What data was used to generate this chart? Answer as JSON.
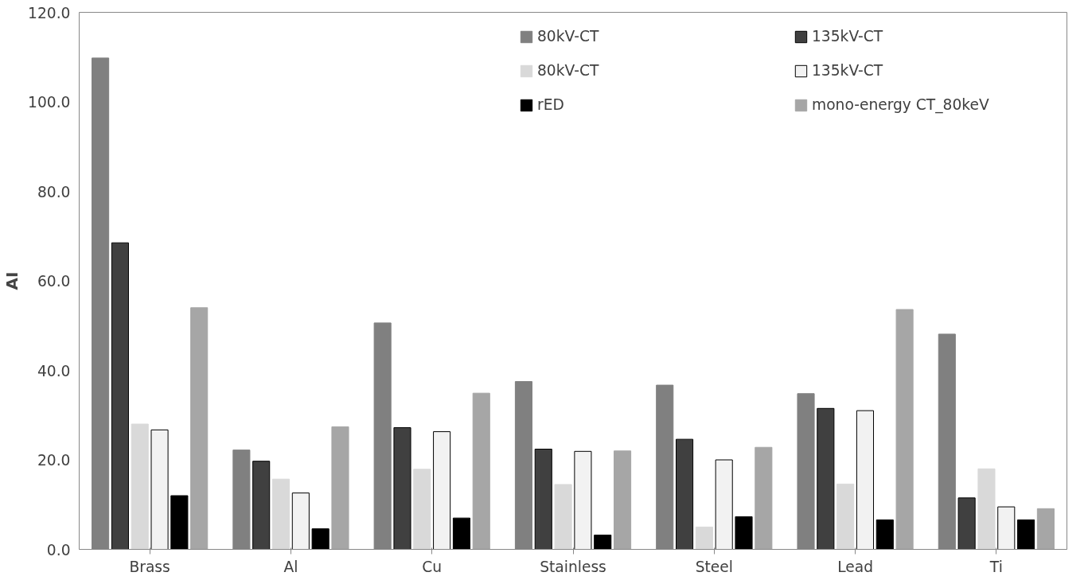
{
  "chart_data": {
    "type": "bar",
    "ylabel": "AI",
    "categories": [
      "Brass",
      "Al",
      "Cu",
      "Stainless",
      "Steel",
      "Lead",
      "Ti"
    ],
    "series": [
      {
        "name": "80kV-CT",
        "color": "#808080",
        "values": [
          109.8,
          22.2,
          50.6,
          37.5,
          36.7,
          34.8,
          48.1
        ]
      },
      {
        "name": "135kV-CT",
        "color": "#404040",
        "values": [
          68.5,
          19.7,
          27.2,
          22.4,
          24.6,
          31.5,
          11.5
        ]
      },
      {
        "name": "80kV-CT",
        "color": "#d9d9d9",
        "values": [
          28.0,
          15.7,
          17.9,
          14.5,
          5.0,
          14.6,
          18.0
        ]
      },
      {
        "name": "135kV-CT",
        "color": "#f2f2f2",
        "values": [
          26.7,
          12.6,
          26.3,
          21.9,
          20.0,
          31.0,
          9.5
        ]
      },
      {
        "name": "rED",
        "color": "#000000",
        "values": [
          12.0,
          4.6,
          7.0,
          3.2,
          7.3,
          6.6,
          6.6
        ]
      },
      {
        "name": "mono-energy CT_80keV",
        "color": "#a6a6a6",
        "values": [
          54.0,
          27.4,
          34.9,
          22.0,
          22.8,
          53.6,
          9.1
        ]
      }
    ],
    "ylim": [
      0,
      120
    ],
    "yticks": [
      {
        "value": 0,
        "label": "0.0"
      },
      {
        "value": 20,
        "label": "20.0"
      },
      {
        "value": 40,
        "label": "40.0"
      },
      {
        "value": 60,
        "label": "60.0"
      },
      {
        "value": 80,
        "label": "80.0"
      },
      {
        "value": 100,
        "label": "100.0"
      },
      {
        "value": 120,
        "label": "120.0"
      }
    ],
    "grid": false,
    "legend": "top right"
  }
}
